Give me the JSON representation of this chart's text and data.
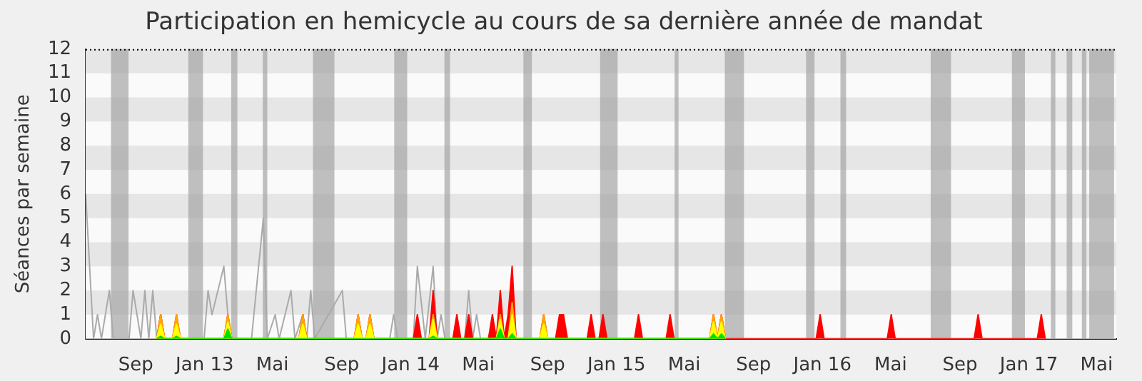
{
  "chart_data": {
    "type": "area",
    "title": "Participation en hemicycle au cours de sa dernière année de mandat",
    "ylabel": "Séances par semaine",
    "xlim": [
      "2012-06-04",
      "2017-06-05"
    ],
    "xticks": [
      {
        "value": "2012-09-01",
        "label": "Sep"
      },
      {
        "value": "2013-01-01",
        "label": "Jan 13"
      },
      {
        "value": "2013-05-01",
        "label": "Mai"
      },
      {
        "value": "2013-09-01",
        "label": "Sep"
      },
      {
        "value": "2014-01-01",
        "label": "Jan 14"
      },
      {
        "value": "2014-05-01",
        "label": "Mai"
      },
      {
        "value": "2014-09-01",
        "label": "Sep"
      },
      {
        "value": "2015-01-01",
        "label": "Jan 15"
      },
      {
        "value": "2015-05-01",
        "label": "Mai"
      },
      {
        "value": "2015-09-01",
        "label": "Sep"
      },
      {
        "value": "2016-01-01",
        "label": "Jan 16"
      },
      {
        "value": "2016-05-01",
        "label": "Mai"
      },
      {
        "value": "2016-09-01",
        "label": "Sep"
      },
      {
        "value": "2017-01-01",
        "label": "Jan 17"
      },
      {
        "value": "2017-05-01",
        "label": "Mai"
      }
    ],
    "ylim": [
      0,
      12
    ],
    "yticks": [
      0,
      1,
      2,
      3,
      4,
      5,
      6,
      7,
      8,
      9,
      10,
      11,
      12
    ],
    "marker": "none",
    "bands": [
      {
        "axis": "y",
        "from": 1,
        "to": 2,
        "color": "#e6e6e6"
      },
      {
        "axis": "y",
        "from": 3,
        "to": 4,
        "color": "#e6e6e6"
      },
      {
        "axis": "y",
        "from": 5,
        "to": 6,
        "color": "#e6e6e6"
      },
      {
        "axis": "y",
        "from": 7,
        "to": 8,
        "color": "#e6e6e6"
      },
      {
        "axis": "y",
        "from": 9,
        "to": 10,
        "color": "#e6e6e6"
      },
      {
        "axis": "y",
        "from": 11,
        "to": 12,
        "color": "#e6e6e6"
      },
      {
        "axis": "x",
        "from": "2012-07-19",
        "to": "2012-08-19",
        "color": "#a0a0a0"
      },
      {
        "axis": "x",
        "from": "2012-12-03",
        "to": "2012-12-29",
        "color": "#a0a0a0"
      },
      {
        "axis": "x",
        "from": "2013-02-17",
        "to": "2013-02-28",
        "color": "#a0a0a0"
      },
      {
        "axis": "x",
        "from": "2013-04-14",
        "to": "2013-04-22",
        "color": "#a0a0a0"
      },
      {
        "axis": "x",
        "from": "2013-07-12",
        "to": "2013-08-19",
        "color": "#a0a0a0"
      },
      {
        "axis": "x",
        "from": "2013-12-03",
        "to": "2013-12-26",
        "color": "#a0a0a0"
      },
      {
        "axis": "x",
        "from": "2014-03-02",
        "to": "2014-03-12",
        "color": "#a0a0a0"
      },
      {
        "axis": "x",
        "from": "2014-07-20",
        "to": "2014-08-04",
        "color": "#a0a0a0"
      },
      {
        "axis": "x",
        "from": "2014-12-03",
        "to": "2015-01-03",
        "color": "#a0a0a0"
      },
      {
        "axis": "x",
        "from": "2015-04-14",
        "to": "2015-04-21",
        "color": "#a0a0a0"
      },
      {
        "axis": "x",
        "from": "2015-07-12",
        "to": "2015-08-15",
        "color": "#a0a0a0"
      },
      {
        "axis": "x",
        "from": "2015-12-03",
        "to": "2015-12-18",
        "color": "#a0a0a0"
      },
      {
        "axis": "x",
        "from": "2016-02-02",
        "to": "2016-02-12",
        "color": "#a0a0a0"
      },
      {
        "axis": "x",
        "from": "2016-07-11",
        "to": "2016-08-16",
        "color": "#a0a0a0"
      },
      {
        "axis": "x",
        "from": "2016-12-02",
        "to": "2016-12-25",
        "color": "#a0a0a0"
      },
      {
        "axis": "x",
        "from": "2017-02-09",
        "to": "2017-02-17",
        "color": "#a0a0a0"
      },
      {
        "axis": "x",
        "from": "2017-03-09",
        "to": "2017-03-19",
        "color": "#a0a0a0"
      },
      {
        "axis": "x",
        "from": "2017-04-05",
        "to": "2017-04-13",
        "color": "#a0a0a0"
      },
      {
        "axis": "x",
        "from": "2017-04-18",
        "to": "2017-06-01",
        "color": "#a0a0a0"
      }
    ],
    "series": [
      {
        "type": "line",
        "color": "#aaaaaa",
        "x": [
          "2012-06-04",
          "2012-06-18",
          "2012-06-25",
          "2012-07-02",
          "2012-07-16",
          "2012-07-23",
          "2012-08-20",
          "2012-08-27",
          "2012-09-03",
          "2012-09-10",
          "2012-09-17",
          "2012-09-24",
          "2012-10-01",
          "2012-10-08",
          "2012-10-15",
          "2012-10-22",
          "2012-11-05",
          "2012-11-12",
          "2012-11-19",
          "2012-12-31",
          "2013-01-07",
          "2013-01-14",
          "2013-02-04",
          "2013-02-11",
          "2013-02-18",
          "2013-03-25",
          "2013-04-15",
          "2013-04-22",
          "2013-05-06",
          "2013-05-13",
          "2013-06-03",
          "2013-06-10",
          "2013-06-24",
          "2013-07-01",
          "2013-07-08",
          "2013-07-15",
          "2013-09-02",
          "2013-09-09",
          "2013-09-23",
          "2013-10-28",
          "2013-11-25",
          "2013-12-02",
          "2013-12-09",
          "2014-01-06",
          "2014-01-13",
          "2014-01-27",
          "2014-02-10",
          "2014-02-17",
          "2014-02-24",
          "2014-03-03",
          "2014-04-07",
          "2014-04-14",
          "2014-04-21",
          "2014-04-28",
          "2014-05-05"
        ],
        "values": [
          6,
          0,
          1,
          0,
          2,
          0,
          0,
          2,
          1,
          0,
          2,
          0,
          2,
          0,
          1,
          0,
          0,
          null,
          0,
          0,
          2,
          1,
          3,
          1,
          0,
          0,
          5,
          0,
          1,
          0,
          2,
          0,
          1,
          0,
          2,
          0,
          2,
          0,
          0,
          0,
          0,
          1,
          0,
          0,
          3,
          0,
          3,
          0,
          1,
          0,
          0,
          2,
          0,
          1,
          0
        ]
      },
      {
        "color": "#ff0000",
        "x": [
          "2012-10-08",
          "2012-10-15",
          "2012-10-22",
          "2012-11-05",
          "2012-11-12",
          "2012-11-19",
          "2013-02-04",
          "2013-02-11",
          "2013-02-18",
          "2013-06-17",
          "2013-06-24",
          "2013-07-01",
          "2013-09-23",
          "2013-09-30",
          "2013-10-07",
          "2013-10-14",
          "2013-10-21",
          "2013-10-28",
          "2014-01-06",
          "2014-01-13",
          "2014-01-20",
          "2014-02-03",
          "2014-02-10",
          "2014-02-17",
          "2014-03-17",
          "2014-03-24",
          "2014-03-31",
          "2014-04-07",
          "2014-04-14",
          "2014-04-21",
          "2014-05-19",
          "2014-05-26",
          "2014-06-02",
          "2014-06-09",
          "2014-06-16",
          "2014-06-23",
          "2014-06-30",
          "2014-07-07",
          "2014-08-18",
          "2014-08-25",
          "2014-09-01",
          "2014-09-15",
          "2014-09-22",
          "2014-09-29",
          "2014-10-06",
          "2014-11-10",
          "2014-11-17",
          "2014-11-24",
          "2014-12-01",
          "2014-12-08",
          "2014-12-15",
          "2015-02-02",
          "2015-02-09",
          "2015-02-16",
          "2015-03-30",
          "2015-04-06",
          "2015-04-13",
          "2015-06-15",
          "2015-06-22",
          "2015-06-29",
          "2015-07-06",
          "2015-07-13",
          "2015-12-21",
          "2015-12-28",
          "2016-01-04",
          "2016-04-25",
          "2016-05-02",
          "2016-05-09",
          "2016-09-26",
          "2016-10-03",
          "2016-10-10",
          "2017-01-16",
          "2017-01-23",
          "2017-01-30"
        ],
        "values": [
          0,
          1,
          0,
          0,
          1,
          0,
          0,
          1,
          0,
          0,
          1,
          0,
          0,
          1,
          0,
          0,
          1,
          0,
          0,
          1,
          0,
          0,
          2,
          0,
          0,
          1,
          0,
          0,
          1,
          0,
          0,
          1,
          0,
          2,
          0,
          1,
          3,
          0,
          0,
          1,
          0,
          0,
          1,
          1,
          0,
          0,
          1,
          0,
          0,
          1,
          0,
          0,
          1,
          0,
          0,
          1,
          0,
          0,
          1,
          0,
          1,
          0,
          0,
          1,
          0,
          0,
          1,
          0,
          0,
          1,
          0,
          0,
          1,
          0
        ]
      },
      {
        "color": "#ffa500",
        "x": [
          "2012-10-08",
          "2012-10-15",
          "2012-10-22",
          "2012-11-05",
          "2012-11-12",
          "2012-11-19",
          "2013-02-04",
          "2013-02-11",
          "2013-02-18",
          "2013-06-17",
          "2013-06-24",
          "2013-07-01",
          "2013-09-23",
          "2013-09-30",
          "2013-10-07",
          "2013-10-14",
          "2013-10-21",
          "2013-10-28",
          "2014-02-03",
          "2014-02-10",
          "2014-02-17",
          "2014-06-02",
          "2014-06-09",
          "2014-06-16",
          "2014-06-23",
          "2014-06-30",
          "2014-07-07",
          "2014-08-18",
          "2014-08-25",
          "2014-09-01",
          "2015-06-15",
          "2015-06-22",
          "2015-06-29",
          "2015-07-06",
          "2015-07-13"
        ],
        "values": [
          0,
          1,
          0,
          0,
          1,
          0,
          0,
          1,
          0,
          0,
          1,
          0,
          0,
          1,
          0,
          0,
          1,
          0,
          0,
          1,
          0,
          0,
          1,
          0,
          0,
          1.5,
          0,
          0,
          1,
          0,
          0,
          1,
          0,
          1,
          0
        ]
      },
      {
        "color": "#ffff00",
        "x": [
          "2012-10-08",
          "2012-10-15",
          "2012-10-22",
          "2012-11-05",
          "2012-11-12",
          "2012-11-19",
          "2013-02-04",
          "2013-02-11",
          "2013-02-18",
          "2013-06-17",
          "2013-06-24",
          "2013-07-01",
          "2013-09-23",
          "2013-09-30",
          "2013-10-07",
          "2013-10-14",
          "2013-10-21",
          "2013-10-28",
          "2014-02-03",
          "2014-02-10",
          "2014-02-17",
          "2014-06-02",
          "2014-06-09",
          "2014-06-16",
          "2014-06-23",
          "2014-06-30",
          "2014-07-07",
          "2014-08-18",
          "2014-08-25",
          "2014-09-01",
          "2015-06-15",
          "2015-06-22",
          "2015-06-29",
          "2015-07-06",
          "2015-07-13"
        ],
        "values": [
          0,
          0.6,
          0,
          0,
          0.6,
          0,
          0,
          0.7,
          0,
          0,
          0.6,
          0,
          0,
          0.6,
          0,
          0,
          0.6,
          0,
          0,
          0.8,
          0,
          0,
          0.8,
          0,
          0,
          1,
          0,
          0,
          0.6,
          0,
          0,
          0.7,
          0,
          0.7,
          0
        ]
      },
      {
        "color": "#00e000",
        "x": [
          "2012-10-08",
          "2012-10-15",
          "2012-10-22",
          "2012-11-05",
          "2012-11-12",
          "2012-11-19",
          "2013-02-04",
          "2013-02-11",
          "2013-02-18",
          "2014-02-03",
          "2014-02-10",
          "2014-02-17",
          "2014-06-02",
          "2014-06-09",
          "2014-06-16",
          "2014-06-23",
          "2014-06-30",
          "2014-07-07",
          "2015-06-15",
          "2015-06-22",
          "2015-06-29",
          "2015-07-06",
          "2015-07-13"
        ],
        "values": [
          0,
          0.1,
          0,
          0,
          0.1,
          0,
          0,
          0.4,
          0,
          0,
          0.1,
          0,
          0,
          0.4,
          0,
          0,
          0.2,
          0,
          0,
          0.2,
          0,
          0.2,
          0
        ]
      }
    ]
  }
}
